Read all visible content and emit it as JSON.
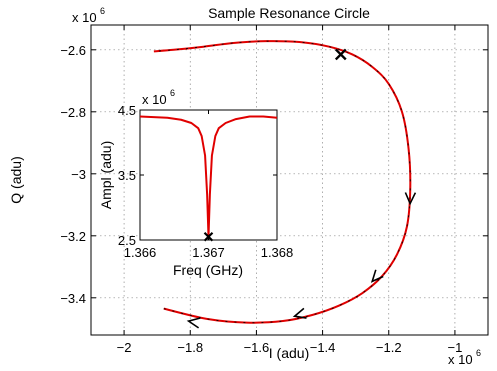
{
  "chart_data": [
    {
      "type": "line",
      "title": "Sample Resonance Circle",
      "xlabel": "I (adu)",
      "ylabel": "Q (adu)",
      "x_multiplier_label": "x 10",
      "x_multiplier_exp": "6",
      "y_multiplier_label": "x 10",
      "y_multiplier_exp": "6",
      "xlim": [
        -2.1,
        -0.9
      ],
      "ylim": [
        -3.52,
        -2.52
      ],
      "xticks": [
        -2,
        -1.8,
        -1.6,
        -1.4,
        -1.2,
        -1
      ],
      "xtick_labels": [
        "−2",
        "−1.8",
        "−1.6",
        "−1.4",
        "−1.2",
        "−1"
      ],
      "yticks": [
        -2.6,
        -2.8,
        -3.0,
        -3.2,
        -3.4
      ],
      "ytick_labels": [
        "−2.6",
        "−2.8",
        "−3",
        "−3.2",
        "−3.4"
      ],
      "grid": true,
      "line_color": "#e00000",
      "arrow_color": "#000000",
      "series": [
        {
          "x": [
            -1.88,
            -1.75,
            -1.63,
            -1.52,
            -1.43,
            -1.35,
            -1.28,
            -1.22,
            -1.175,
            -1.145,
            -1.135,
            -1.14,
            -1.16,
            -1.2,
            -1.25,
            -1.31,
            -1.38,
            -1.47,
            -1.57,
            -1.67,
            -1.76,
            -1.85,
            -1.91
          ],
          "y": [
            -3.435,
            -3.468,
            -3.48,
            -3.475,
            -3.455,
            -3.425,
            -3.385,
            -3.33,
            -3.26,
            -3.17,
            -3.05,
            -2.92,
            -2.8,
            -2.71,
            -2.655,
            -2.615,
            -2.59,
            -2.575,
            -2.572,
            -2.578,
            -2.59,
            -2.6,
            -2.605
          ]
        }
      ],
      "marker": {
        "x": -1.345,
        "y": -2.615,
        "symbol": "x"
      },
      "arrows": [
        {
          "x": -1.135,
          "y": -3.08
        },
        {
          "x": -1.24,
          "y": -3.335
        },
        {
          "x": -1.47,
          "y": -3.455
        },
        {
          "x": -1.79,
          "y": -3.478
        }
      ]
    },
    {
      "type": "line",
      "title": "",
      "xlabel": "Freq (GHz)",
      "ylabel": "Ampl (adu)",
      "y_multiplier_label": "x 10",
      "y_multiplier_exp": "6",
      "xlim": [
        1.366,
        1.368
      ],
      "ylim": [
        2.5,
        4.5
      ],
      "xticks": [
        1.366,
        1.367,
        1.368
      ],
      "xtick_labels": [
        "1.366",
        "1.367",
        "1.368"
      ],
      "yticks": [
        2.5,
        3.5,
        4.5
      ],
      "ytick_labels": [
        "2.5",
        "3.5",
        "4.5"
      ],
      "grid": false,
      "line_color": "#e00000",
      "series": [
        {
          "x": [
            1.366,
            1.3662,
            1.3664,
            1.3666,
            1.36675,
            1.36685,
            1.3669,
            1.36695,
            1.36698,
            1.367,
            1.36702,
            1.36705,
            1.3671,
            1.36715,
            1.36725,
            1.3674,
            1.3676,
            1.3678,
            1.368
          ],
          "y": [
            4.4,
            4.39,
            4.38,
            4.35,
            4.3,
            4.22,
            4.1,
            3.8,
            3.2,
            2.55,
            3.2,
            3.8,
            4.1,
            4.22,
            4.3,
            4.36,
            4.4,
            4.4,
            4.38
          ]
        }
      ],
      "marker": {
        "x": 1.367,
        "y": 2.55,
        "symbol": "x"
      }
    }
  ]
}
